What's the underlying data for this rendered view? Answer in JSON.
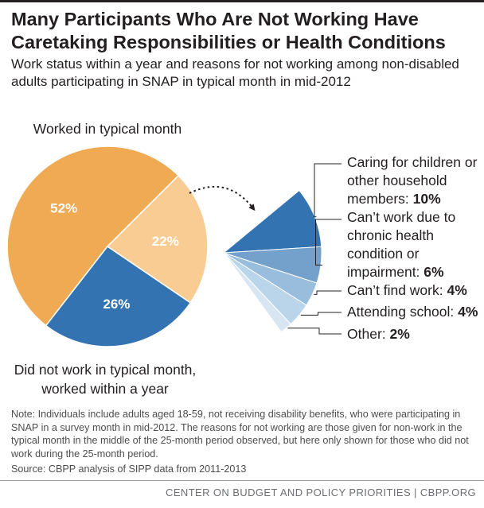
{
  "header": {
    "title": "Many Participants Who Are Not Working Have Caretaking Responsibilities or Health Conditions",
    "subtitle": "Work status within a year and reasons for not working among non-disabled adults participating in SNAP in typical month in mid-2012"
  },
  "chart_data": [
    {
      "type": "pie",
      "title": "Work status within a year",
      "slices": [
        {
          "label": "Worked in typical month",
          "value": 52,
          "display": "52%",
          "color": "#f0aa54"
        },
        {
          "label": "Did not work in typical month, worked within a year",
          "value": 22,
          "display": "22%",
          "color": "#f8cc92"
        },
        {
          "label": "",
          "value": 26,
          "display": "26%",
          "color": "#3473b2"
        }
      ],
      "labels": {
        "worked": "Worked in typical month",
        "not_worked_line1": "Did not work in typical month,",
        "not_worked_line2": "worked within a year"
      }
    },
    {
      "type": "pie",
      "title": "Reasons for not working",
      "slices": [
        {
          "value": 10,
          "color": "#3473b2",
          "label_lines": [
            "Caring for children or",
            "other household"
          ],
          "label_last": "members: ",
          "value_label": "10%"
        },
        {
          "value": 6,
          "color": "#74a1cc",
          "label_lines": [
            "Can’t work due to",
            "chronic health",
            "condition or"
          ],
          "label_last": "impairment: ",
          "value_label": "6%"
        },
        {
          "value": 4,
          "color": "#99bddd",
          "label_lines": [],
          "label_last": "Can’t find work: ",
          "value_label": "4%"
        },
        {
          "value": 4,
          "color": "#bad4ea",
          "label_lines": [],
          "label_last": "Attending school: ",
          "value_label": "4%"
        },
        {
          "value": 2,
          "color": "#d8e6f3",
          "label_lines": [],
          "label_last": "Other: ",
          "value_label": "2%"
        }
      ]
    }
  ],
  "note": "Note: Individuals include adults aged 18-59, not receiving disability benefits, who were participating in SNAP in a survey month in mid-2012. The reasons for not working are those given for non-work in the typical month in the middle of the 25-month period observed, but here only shown for those who did not work during the 25-month period.",
  "source": "Source: CBPP analysis of SIPP data from 2011-2013",
  "footer": "CENTER ON BUDGET AND POLICY PRIORITIES | CBPP.ORG"
}
